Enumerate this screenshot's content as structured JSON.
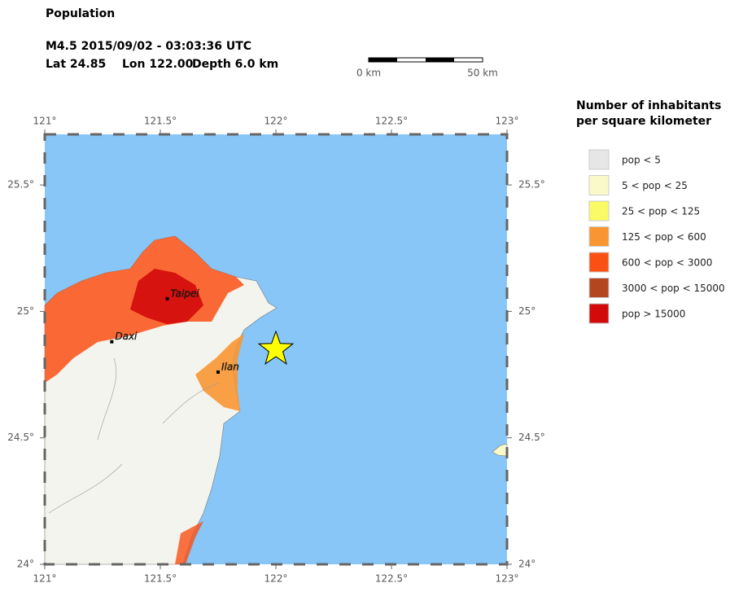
{
  "header": {
    "title": "Population",
    "event": "M4.5  2015/09/02 - 03:03:36 UTC",
    "lat": "Lat 24.85",
    "lon": "Lon 122.00",
    "depth": "Depth  6.0 km"
  },
  "scale_bar": {
    "start": "0 km",
    "end": "50 km"
  },
  "map": {
    "lonlim": [
      121,
      123
    ],
    "latlim": [
      24,
      25.7
    ],
    "lonticks": [
      {
        "value": 121,
        "label": "121°"
      },
      {
        "value": 121.5,
        "label": "121.5°"
      },
      {
        "value": 122,
        "label": "122°"
      },
      {
        "value": 122.5,
        "label": "122.5°"
      },
      {
        "value": 123,
        "label": "123°"
      }
    ],
    "latticks": [
      {
        "value": 24,
        "label": "24°"
      },
      {
        "value": 24.5,
        "label": "24.5°"
      },
      {
        "value": 25,
        "label": "25°"
      },
      {
        "value": 25.5,
        "label": "25.5°"
      }
    ],
    "ocean_color": "#87c6f7",
    "epicenter": {
      "lat": 24.85,
      "lon": 122.0,
      "color": "#ffff00"
    },
    "cities": [
      {
        "name": "Taipei",
        "lat": 25.05,
        "lon": 121.53
      },
      {
        "name": "Daxi",
        "lat": 24.88,
        "lon": 121.29
      },
      {
        "name": "Ilan",
        "lat": 24.76,
        "lon": 121.75
      }
    ]
  },
  "legend": {
    "title": [
      "Number of inhabitants",
      "per square kilometer"
    ],
    "items": [
      {
        "label": "pop < 5",
        "color": "#e6e6e6"
      },
      {
        "label": "5 < pop < 25",
        "color": "#fafac8"
      },
      {
        "label": "25 < pop < 125",
        "color": "#fafa64"
      },
      {
        "label": "125 < pop < 600",
        "color": "#fa9632"
      },
      {
        "label": "600 < pop < 3000",
        "color": "#fa5014"
      },
      {
        "label": "3000 < pop < 15000",
        "color": "#b4461e"
      },
      {
        "label": "pop > 15000",
        "color": "#d20a0a"
      }
    ]
  }
}
